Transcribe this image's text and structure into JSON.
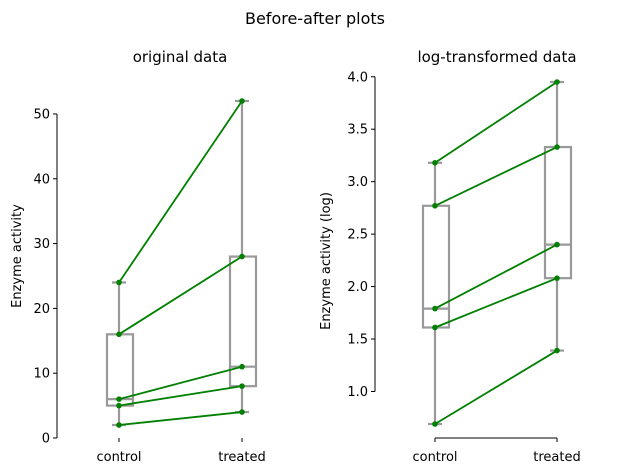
{
  "figure": {
    "title": "Before-after plots"
  },
  "colors": {
    "line": "#008000",
    "box": "#999999",
    "axis": "#000000"
  },
  "chart_data": [
    {
      "type": "box+paired-line",
      "title": "original data",
      "xlabel": "",
      "ylabel": "Enzyme activity",
      "categories": [
        "control",
        "treated"
      ],
      "ylim": [
        0,
        52
      ],
      "yticks": [
        0,
        10,
        20,
        30,
        40,
        50
      ],
      "pairs": [
        [
          24,
          52
        ],
        [
          16,
          28
        ],
        [
          6,
          11
        ],
        [
          5,
          8
        ],
        [
          2,
          4
        ]
      ],
      "boxes": [
        {
          "min": 2,
          "q1": 5,
          "median": 6,
          "q3": 16,
          "max": 24
        },
        {
          "min": 4,
          "q1": 8,
          "median": 11,
          "q3": 28,
          "max": 52
        }
      ],
      "grid": false
    },
    {
      "type": "box+paired-line",
      "title": "log-transformed data",
      "xlabel": "",
      "ylabel": "Enzyme activity (log)",
      "categories": [
        "control",
        "treated"
      ],
      "ylim": [
        0.69,
        3.95
      ],
      "yticks": [
        1.0,
        1.5,
        2.0,
        2.5,
        3.0,
        3.5,
        4.0
      ],
      "pairs": [
        [
          3.18,
          3.95
        ],
        [
          2.77,
          3.33
        ],
        [
          1.79,
          2.4
        ],
        [
          1.61,
          2.08
        ],
        [
          0.69,
          1.39
        ]
      ],
      "boxes": [
        {
          "min": 0.69,
          "q1": 1.61,
          "median": 1.79,
          "q3": 2.77,
          "max": 3.18
        },
        {
          "min": 1.39,
          "q1": 2.08,
          "median": 2.4,
          "q3": 3.33,
          "max": 3.95
        }
      ],
      "grid": false
    }
  ]
}
